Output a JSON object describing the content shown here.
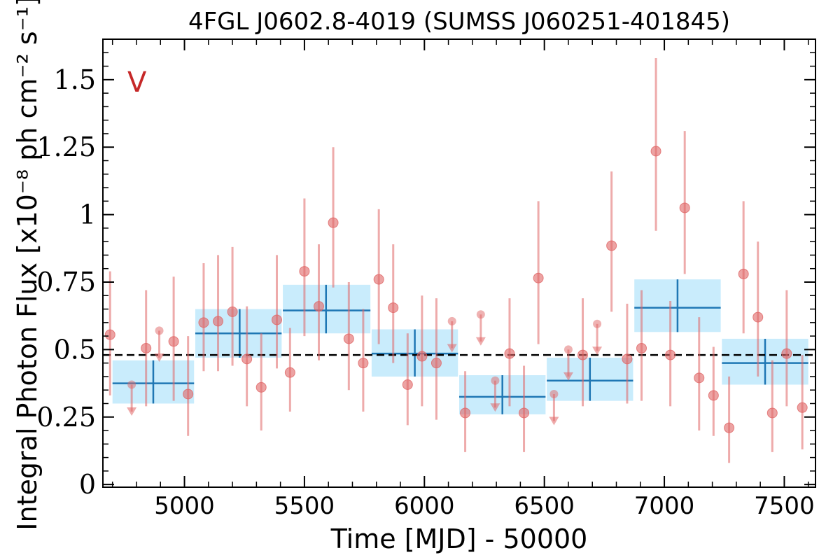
{
  "chart_data": {
    "type": "scatter",
    "title": "4FGL J0602.8-4019 (SUMSS J060251-401845)",
    "xlabel": "Time [MJD] - 50000",
    "ylabel": "Integral Photon Flux [x10⁻⁸ ph cm⁻² s⁻¹]",
    "annotation": "V",
    "xlim": [
      4660,
      7630
    ],
    "ylim": [
      -0.01,
      1.65
    ],
    "x_ticks": [
      5000,
      5500,
      6000,
      6500,
      7000,
      7500
    ],
    "x_tick_labels": [
      "5000",
      "5500",
      "6000",
      "6500",
      "7000",
      "7500"
    ],
    "y_ticks": [
      0,
      0.25,
      0.5,
      0.75,
      1,
      1.25,
      1.5
    ],
    "y_tick_labels": [
      "0",
      "0.25",
      "0.5",
      "0.75",
      "1",
      "1.25",
      "1.5"
    ],
    "mean_flux": 0.48,
    "grid": false,
    "colors": {
      "points": "#e06666",
      "block_band": "#c9ecfc",
      "block_line": "#1f77b4",
      "mean_line": "#000000",
      "annotation": "#c62828"
    },
    "detections": [
      {
        "x": 4690,
        "y": 0.555,
        "lo": 0.33,
        "hi": 0.79
      },
      {
        "x": 4840,
        "y": 0.505,
        "lo": 0.29,
        "hi": 0.72
      },
      {
        "x": 4955,
        "y": 0.53,
        "lo": 0.31,
        "hi": 0.77
      },
      {
        "x": 5015,
        "y": 0.335,
        "lo": 0.18,
        "hi": 0.55
      },
      {
        "x": 5080,
        "y": 0.6,
        "lo": 0.42,
        "hi": 0.82
      },
      {
        "x": 5140,
        "y": 0.605,
        "lo": 0.42,
        "hi": 0.85
      },
      {
        "x": 5200,
        "y": 0.64,
        "lo": 0.44,
        "hi": 0.88
      },
      {
        "x": 5260,
        "y": 0.465,
        "lo": 0.29,
        "hi": 0.66
      },
      {
        "x": 5320,
        "y": 0.36,
        "lo": 0.2,
        "hi": 0.56
      },
      {
        "x": 5385,
        "y": 0.61,
        "lo": 0.43,
        "hi": 0.85
      },
      {
        "x": 5440,
        "y": 0.415,
        "lo": 0.27,
        "hi": 0.58
      },
      {
        "x": 5500,
        "y": 0.79,
        "lo": 0.55,
        "hi": 1.06
      },
      {
        "x": 5560,
        "y": 0.66,
        "lo": 0.46,
        "hi": 0.89
      },
      {
        "x": 5620,
        "y": 0.97,
        "lo": 0.73,
        "hi": 1.25
      },
      {
        "x": 5685,
        "y": 0.54,
        "lo": 0.35,
        "hi": 0.75
      },
      {
        "x": 5745,
        "y": 0.45,
        "lo": 0.27,
        "hi": 0.65
      },
      {
        "x": 5810,
        "y": 0.76,
        "lo": 0.52,
        "hi": 1.02
      },
      {
        "x": 5870,
        "y": 0.655,
        "lo": 0.45,
        "hi": 0.89
      },
      {
        "x": 5930,
        "y": 0.37,
        "lo": 0.22,
        "hi": 0.56
      },
      {
        "x": 5990,
        "y": 0.475,
        "lo": 0.29,
        "hi": 0.7
      },
      {
        "x": 6050,
        "y": 0.45,
        "lo": 0.24,
        "hi": 0.69
      },
      {
        "x": 6170,
        "y": 0.265,
        "lo": 0.12,
        "hi": 0.42
      },
      {
        "x": 6355,
        "y": 0.485,
        "lo": 0.29,
        "hi": 0.69
      },
      {
        "x": 6415,
        "y": 0.265,
        "lo": 0.12,
        "hi": 0.44
      },
      {
        "x": 6475,
        "y": 0.765,
        "lo": 0.52,
        "hi": 1.05
      },
      {
        "x": 6660,
        "y": 0.48,
        "lo": 0.29,
        "hi": 0.69
      },
      {
        "x": 6780,
        "y": 0.885,
        "lo": 0.64,
        "hi": 1.16
      },
      {
        "x": 6845,
        "y": 0.465,
        "lo": 0.3,
        "hi": 0.67
      },
      {
        "x": 6905,
        "y": 0.505,
        "lo": 0.31,
        "hi": 0.72
      },
      {
        "x": 6965,
        "y": 1.235,
        "lo": 0.94,
        "hi": 1.58
      },
      {
        "x": 7025,
        "y": 0.48,
        "lo": 0.29,
        "hi": 0.68
      },
      {
        "x": 7085,
        "y": 1.025,
        "lo": 0.78,
        "hi": 1.31
      },
      {
        "x": 7145,
        "y": 0.395,
        "lo": 0.2,
        "hi": 0.62
      },
      {
        "x": 7205,
        "y": 0.33,
        "lo": 0.18,
        "hi": 0.51
      },
      {
        "x": 7270,
        "y": 0.21,
        "lo": 0.08,
        "hi": 0.4
      },
      {
        "x": 7330,
        "y": 0.78,
        "lo": 0.56,
        "hi": 1.05
      },
      {
        "x": 7390,
        "y": 0.62,
        "lo": 0.4,
        "hi": 0.9
      },
      {
        "x": 7450,
        "y": 0.265,
        "lo": 0.12,
        "hi": 0.46
      },
      {
        "x": 7510,
        "y": 0.485,
        "lo": 0.29,
        "hi": 0.72
      },
      {
        "x": 7575,
        "y": 0.285,
        "lo": 0.13,
        "hi": 0.48
      }
    ],
    "upper_limits": [
      {
        "x": 4780,
        "y": 0.37
      },
      {
        "x": 4895,
        "y": 0.57
      },
      {
        "x": 6115,
        "y": 0.605
      },
      {
        "x": 6235,
        "y": 0.63
      },
      {
        "x": 6295,
        "y": 0.385
      },
      {
        "x": 6540,
        "y": 0.335
      },
      {
        "x": 6600,
        "y": 0.5
      },
      {
        "x": 6720,
        "y": 0.595
      }
    ],
    "bayesian_blocks": [
      {
        "x0": 4700,
        "x1": 5040,
        "y": 0.375,
        "lo": 0.3,
        "hi": 0.46,
        "xc": 4870
      },
      {
        "x0": 5045,
        "x1": 5405,
        "y": 0.56,
        "lo": 0.47,
        "hi": 0.65,
        "xc": 5230
      },
      {
        "x0": 5410,
        "x1": 5775,
        "y": 0.645,
        "lo": 0.56,
        "hi": 0.74,
        "xc": 5590
      },
      {
        "x0": 5780,
        "x1": 6140,
        "y": 0.485,
        "lo": 0.4,
        "hi": 0.575,
        "xc": 5960
      },
      {
        "x0": 6145,
        "x1": 6505,
        "y": 0.325,
        "lo": 0.26,
        "hi": 0.405,
        "xc": 6325
      },
      {
        "x0": 6510,
        "x1": 6870,
        "y": 0.385,
        "lo": 0.31,
        "hi": 0.47,
        "xc": 6690
      },
      {
        "x0": 6875,
        "x1": 7235,
        "y": 0.655,
        "lo": 0.565,
        "hi": 0.76,
        "xc": 7055
      },
      {
        "x0": 7240,
        "x1": 7600,
        "y": 0.45,
        "lo": 0.37,
        "hi": 0.54,
        "xc": 7420
      }
    ]
  }
}
